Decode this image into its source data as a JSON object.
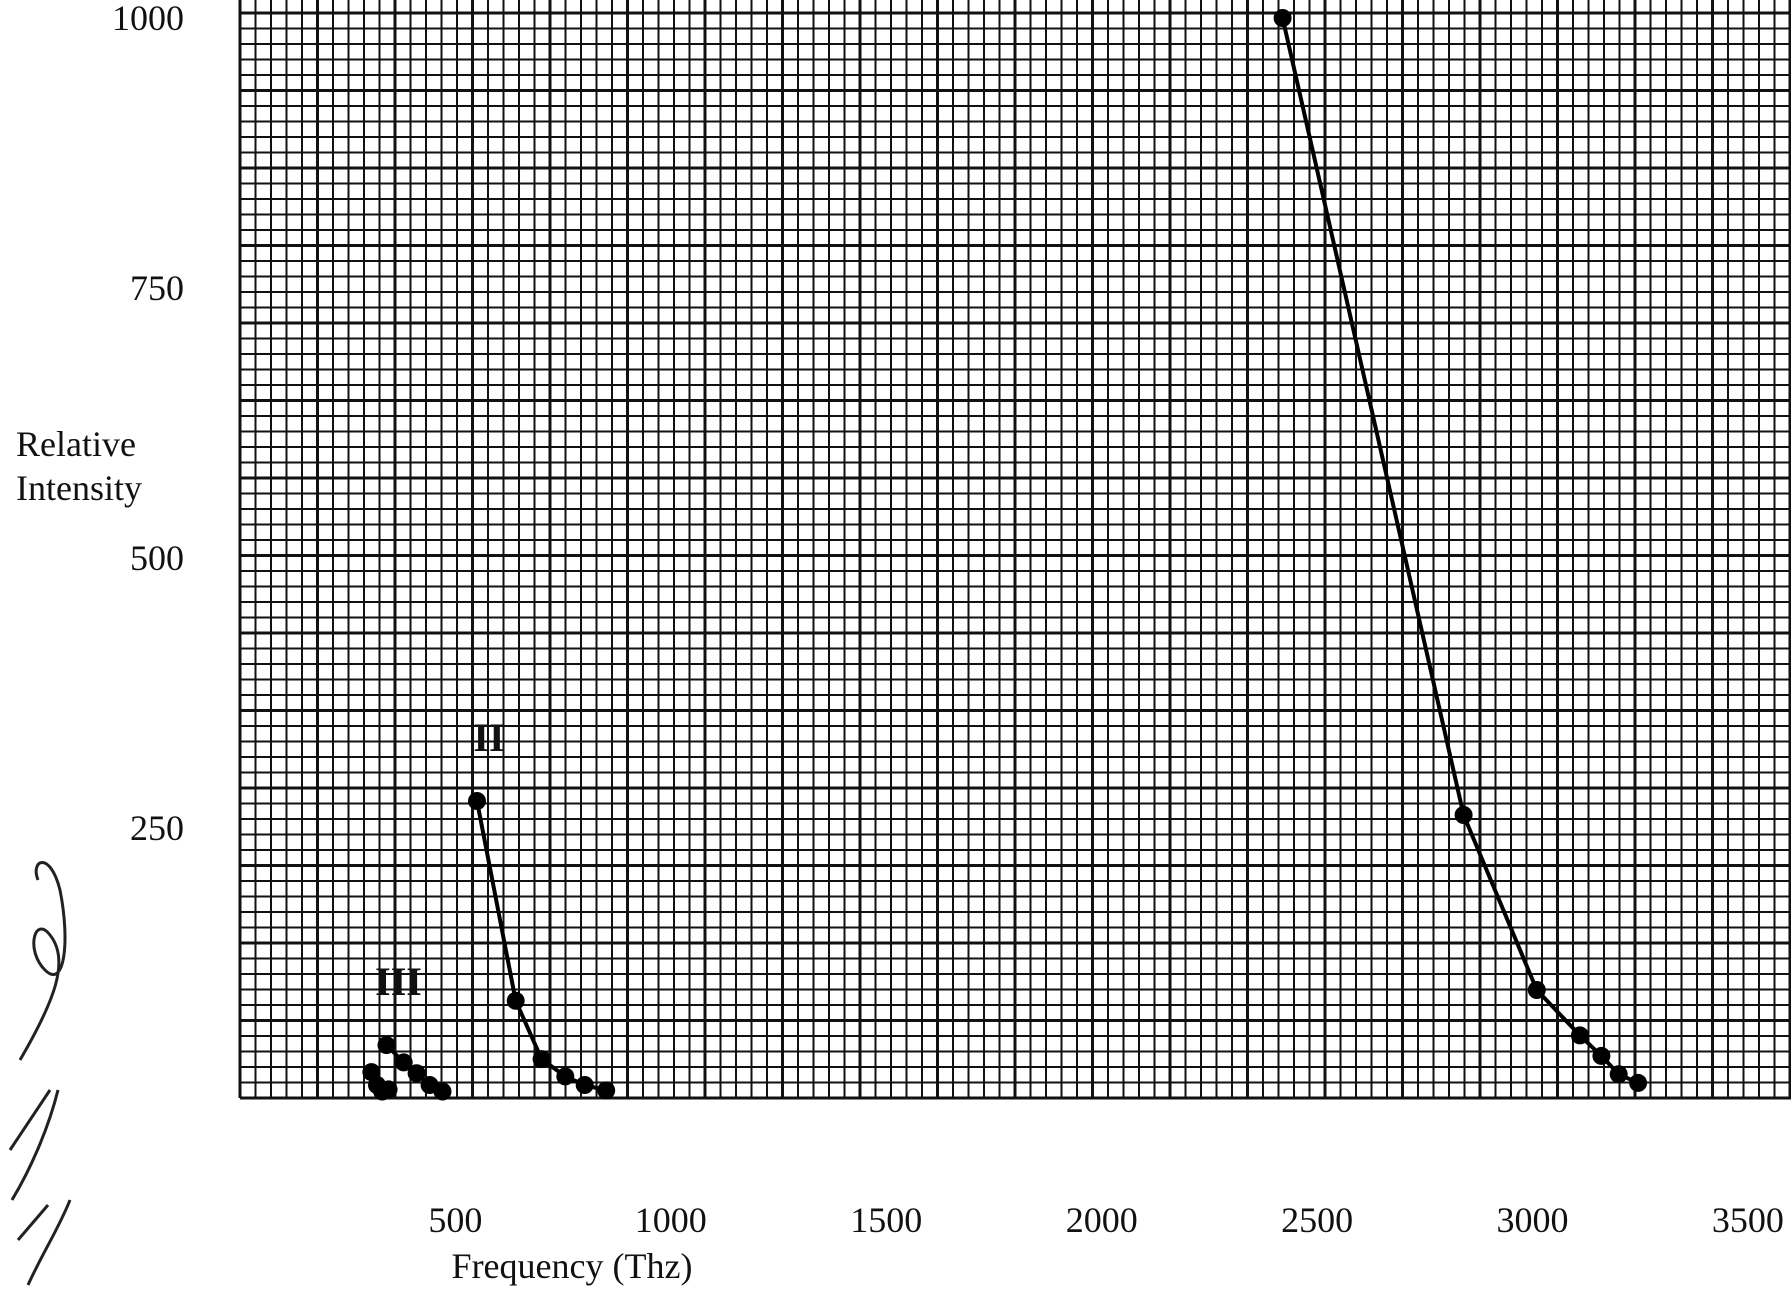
{
  "chart_data": {
    "type": "scatter",
    "title": "",
    "xlabel": "Frequency (Thz)",
    "ylabel_lines": [
      "Relative",
      "Intensity"
    ],
    "xlim": [
      0,
      3600
    ],
    "ylim": [
      0,
      1000
    ],
    "x_ticks": [
      500,
      1000,
      1500,
      2000,
      2500,
      3000,
      3500
    ],
    "y_ticks": [
      250,
      500,
      750,
      1000
    ],
    "grid": true,
    "series": [
      {
        "name": "",
        "points": [
          [
            2420,
            1000
          ],
          [
            2840,
            262
          ],
          [
            3010,
            100
          ],
          [
            3110,
            58
          ],
          [
            3160,
            39
          ],
          [
            3200,
            22
          ],
          [
            3245,
            14
          ]
        ]
      },
      {
        "name": "II",
        "points": [
          [
            550,
            275
          ],
          [
            640,
            90
          ],
          [
            700,
            36
          ],
          [
            755,
            20
          ],
          [
            800,
            12
          ],
          [
            850,
            7
          ]
        ]
      },
      {
        "name": "III",
        "points": [
          [
            340,
            49
          ],
          [
            380,
            33
          ],
          [
            410,
            23
          ],
          [
            440,
            12
          ],
          [
            470,
            6
          ]
        ]
      },
      {
        "name": "",
        "points": [
          [
            305,
            24
          ],
          [
            318,
            12
          ],
          [
            330,
            6
          ],
          [
            345,
            8
          ]
        ]
      }
    ]
  }
}
